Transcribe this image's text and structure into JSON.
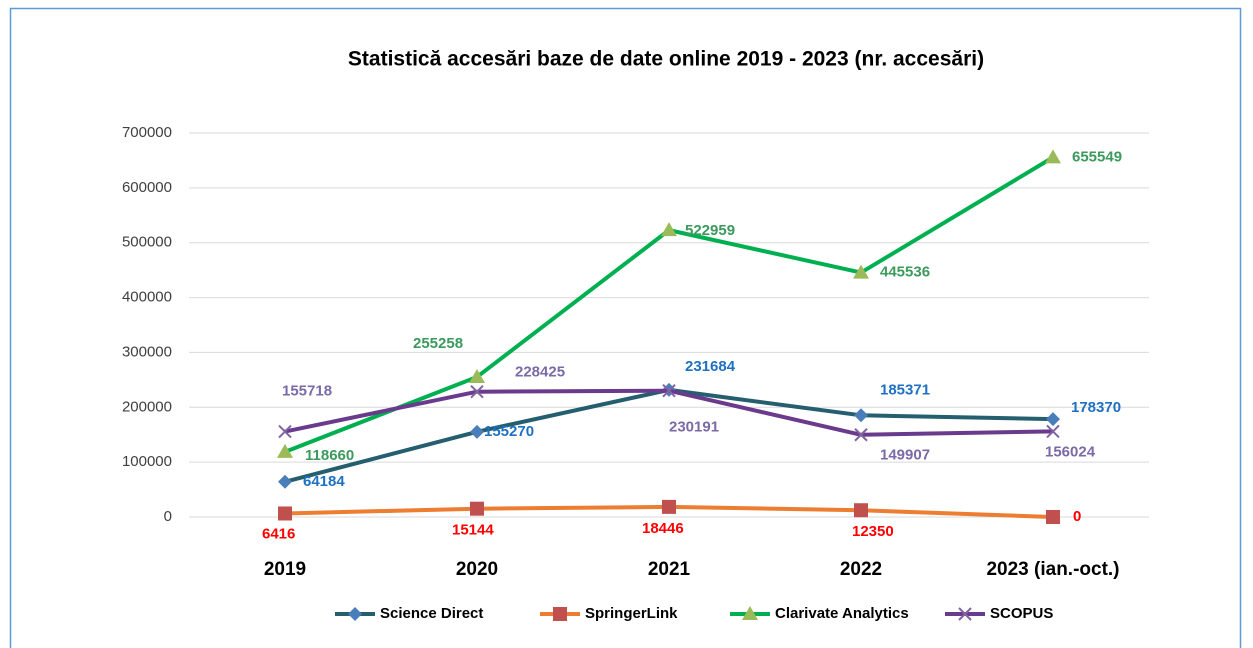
{
  "chart_data": {
    "type": "line",
    "title": "Statistică accesări baze de date online 2019 - 2023 (nr. accesări)",
    "categories": [
      "2019",
      "2020",
      "2021",
      "2022",
      "2023 (ian.-oct.)"
    ],
    "ylim": [
      0,
      700000
    ],
    "yticks": [
      0,
      100000,
      200000,
      300000,
      400000,
      500000,
      600000,
      700000
    ],
    "grid": true,
    "legend": "bottom",
    "series": [
      {
        "name": "Science Direct",
        "color": "#255e6e",
        "marker": "diamond",
        "marker_color": "#4a7ebb",
        "label_color": "#1f70c1",
        "values": [
          64184,
          155270,
          231684,
          185371,
          178370
        ]
      },
      {
        "name": "SpringerLink",
        "color": "#ed7d31",
        "marker": "square",
        "marker_color": "#c0504d",
        "label_color": "#ff0000",
        "values": [
          6416,
          15144,
          18446,
          12350,
          0
        ]
      },
      {
        "name": "Clarivate Analytics",
        "color": "#00b050",
        "marker": "triangle",
        "marker_color": "#9bbb59",
        "label_color": "#3b9a5c",
        "values": [
          118660,
          255258,
          522959,
          445536,
          655549
        ]
      },
      {
        "name": "SCOPUS",
        "color": "#6a3a8c",
        "marker": "x",
        "marker_color": "#8064a2",
        "label_color": "#7a6aa6",
        "values": [
          155718,
          228425,
          230191,
          149907,
          156024
        ]
      }
    ]
  }
}
